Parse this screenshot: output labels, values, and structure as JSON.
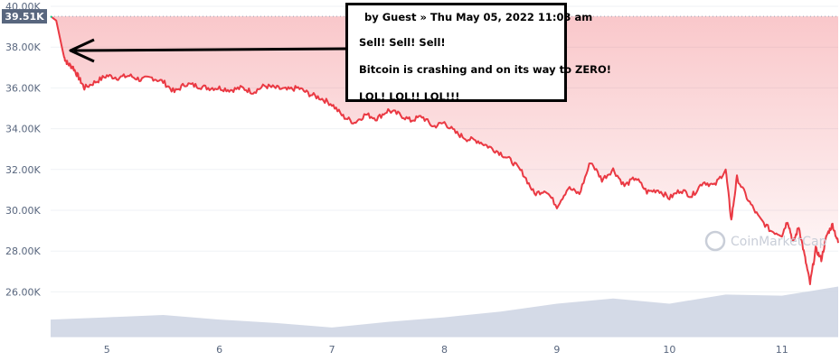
{
  "chart_data": {
    "type": "area",
    "current_price_label": "39.51K",
    "y_ticks": [
      "40.00K",
      "38.00K",
      "36.00K",
      "34.00K",
      "32.00K",
      "30.00K",
      "28.00K",
      "26.00K"
    ],
    "y_tick_values": [
      40000,
      38000,
      36000,
      34000,
      32000,
      30000,
      28000,
      26000
    ],
    "x_ticks": [
      "5",
      "6",
      "7",
      "8",
      "9",
      "10",
      "11"
    ],
    "x_tick_values": [
      5,
      6,
      7,
      8,
      9,
      10,
      11
    ],
    "ylim": [
      24000,
      40000
    ],
    "xlim": [
      4.5,
      11.5
    ],
    "grid": true,
    "colors": {
      "line": "#ea3943",
      "fill": "#ea3943",
      "start": "#16c784",
      "volume": "#cfd6e4",
      "label_bg": "#58667e"
    },
    "watermark": "CoinMarketCap",
    "series": [
      {
        "values_x": [
          4.5,
          4.55,
          4.6,
          4.62,
          4.65,
          4.7,
          4.75,
          4.8,
          4.9,
          5.0,
          5.1,
          5.2,
          5.3,
          5.4,
          5.5,
          5.6,
          5.7,
          5.8,
          5.9,
          6.0,
          6.1,
          6.2,
          6.3,
          6.4,
          6.5,
          6.6,
          6.7,
          6.8,
          6.9,
          7.0,
          7.1,
          7.2,
          7.3,
          7.4,
          7.5,
          7.6,
          7.7,
          7.8,
          7.9,
          8.0,
          8.1,
          8.2,
          8.3,
          8.4,
          8.5,
          8.6,
          8.7,
          8.8,
          8.9,
          9.0,
          9.1,
          9.2,
          9.3,
          9.4,
          9.5,
          9.6,
          9.7,
          9.8,
          9.9,
          10.0,
          10.1,
          10.2,
          10.3,
          10.4,
          10.5,
          10.55,
          10.6,
          10.7,
          10.8,
          10.9,
          11.0,
          11.05,
          11.1,
          11.15,
          11.2,
          11.25,
          11.3,
          11.35,
          11.4,
          11.45,
          11.5
        ],
        "values_y": [
          39510,
          39300,
          38000,
          37500,
          37200,
          37000,
          36500,
          36000,
          36300,
          36600,
          36500,
          36600,
          36400,
          36500,
          36300,
          35800,
          36200,
          36100,
          36000,
          36000,
          35900,
          36000,
          35800,
          36100,
          36000,
          35900,
          36000,
          35700,
          35500,
          35200,
          34600,
          34300,
          34700,
          34500,
          34900,
          34700,
          34400,
          34600,
          34100,
          34300,
          33800,
          33500,
          33400,
          33100,
          32800,
          32400,
          31800,
          30800,
          31000,
          30200,
          31100,
          30800,
          32400,
          31500,
          32000,
          31200,
          31600,
          30900,
          31000,
          30600,
          31000,
          30700,
          31400,
          31200,
          32000,
          29500,
          31600,
          30500,
          29600,
          29000,
          28800,
          29500,
          28400,
          29200,
          27800,
          26400,
          28100,
          27600,
          28800,
          29300,
          28400
        ]
      }
    ],
    "volume": {
      "values_x": [
        4.5,
        5.0,
        5.5,
        6.0,
        6.5,
        7.0,
        7.5,
        8.0,
        8.5,
        9.0,
        9.5,
        10.0,
        10.5,
        11.0,
        11.5
      ],
      "values": [
        0.3,
        0.34,
        0.38,
        0.3,
        0.24,
        0.16,
        0.26,
        0.34,
        0.44,
        0.58,
        0.67,
        0.58,
        0.74,
        0.72,
        0.88
      ]
    }
  },
  "annotation": {
    "header": "by Guest » Thu May 05, 2022 11:03 am",
    "line1": "Sell! Sell! Sell!",
    "line2": "Bitcoin is crashing and on its way to ZERO!",
    "line3": "LOL! LOL!! LOL!!!"
  }
}
